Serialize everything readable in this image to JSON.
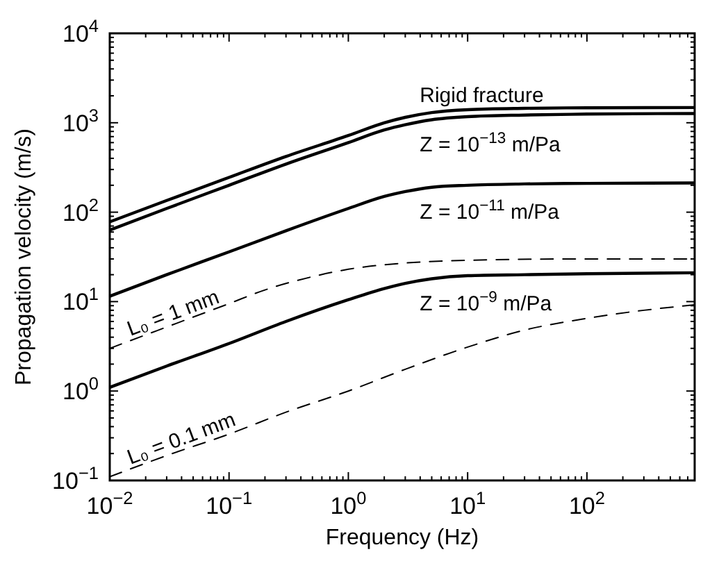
{
  "chart_data": {
    "type": "line",
    "xlabel": "Frequency (Hz)",
    "ylabel": "Propagation velocity (m/s)",
    "log": "xy",
    "xlim": [
      0.01,
      800
    ],
    "ylim": [
      0.1,
      10000
    ],
    "xticks": [
      {
        "value": 0.01,
        "label": "10$^{−2}$"
      },
      {
        "value": 0.1,
        "label": "10$^{−1}$"
      },
      {
        "value": 1,
        "label": "10$^{0}$"
      },
      {
        "value": 10,
        "label": "10$^{1}$"
      },
      {
        "value": 100,
        "label": "10$^{2}$"
      }
    ],
    "yticks": [
      {
        "value": 0.1,
        "label": "10$^{−1}$"
      },
      {
        "value": 1,
        "label": "10$^{0}$"
      },
      {
        "value": 10,
        "label": "10$^{1}$"
      },
      {
        "value": 100,
        "label": "10$^{2}$"
      },
      {
        "value": 1000,
        "label": "10$^{3}$"
      },
      {
        "value": 10000,
        "label": "10$^{4}$"
      }
    ],
    "grid": false,
    "series": [
      {
        "name": "Rigid fracture",
        "color": "#000000",
        "line_style": "solid",
        "x": [
          0.01,
          0.03,
          0.1,
          0.3,
          1,
          2,
          3,
          5,
          10,
          30,
          100,
          800
        ],
        "values": [
          78,
          135,
          245,
          420,
          720,
          1000,
          1150,
          1300,
          1400,
          1450,
          1470,
          1480
        ]
      },
      {
        "name": "Z = 10$^{−13}$ m/Pa",
        "color": "#000000",
        "line_style": "solid",
        "x": [
          0.01,
          0.03,
          0.1,
          0.3,
          1,
          2,
          3,
          5,
          10,
          30,
          100,
          800
        ],
        "values": [
          63,
          110,
          200,
          345,
          600,
          830,
          950,
          1080,
          1170,
          1220,
          1250,
          1270
        ]
      },
      {
        "name": "Z = 10$^{−11}$ m/Pa",
        "color": "#000000",
        "line_style": "solid",
        "x": [
          0.01,
          0.03,
          0.1,
          0.3,
          1,
          2,
          3,
          5,
          10,
          30,
          100,
          800
        ],
        "values": [
          11.5,
          20,
          36,
          62,
          110,
          150,
          170,
          190,
          200,
          207,
          210,
          212
        ]
      },
      {
        "name": "Z = 10$^{−9}$ m/Pa",
        "color": "#000000",
        "line_style": "solid",
        "x": [
          0.01,
          0.03,
          0.1,
          0.3,
          1,
          2,
          3,
          5,
          10,
          30,
          100,
          800
        ],
        "values": [
          1.1,
          1.9,
          3.4,
          6,
          10.5,
          14,
          16,
          18,
          19.5,
          20,
          20.5,
          21
        ]
      },
      {
        "name": "L₀ = 1 mm",
        "color": "#000000",
        "line_style": "dashed",
        "x": [
          0.01,
          0.03,
          0.1,
          0.2,
          0.5,
          1,
          3,
          10,
          100,
          800
        ],
        "values": [
          3,
          5.2,
          9.5,
          13.5,
          19,
          23,
          27,
          29,
          30,
          30
        ]
      },
      {
        "name": "L₀ = 0.1 mm",
        "color": "#000000",
        "line_style": "dashed",
        "x": [
          0.01,
          0.03,
          0.1,
          0.3,
          1,
          3,
          10,
          30,
          100,
          300,
          800
        ],
        "values": [
          0.11,
          0.19,
          0.33,
          0.58,
          1.0,
          1.75,
          3.1,
          4.8,
          6.5,
          8,
          9.2
        ]
      }
    ]
  }
}
